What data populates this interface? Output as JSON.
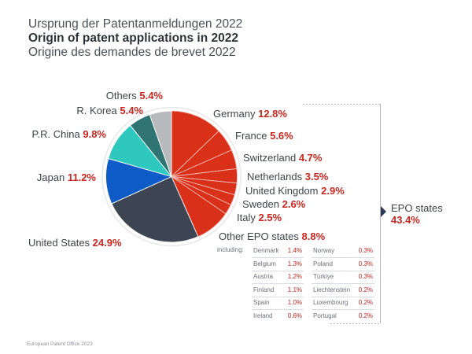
{
  "titles": {
    "de": "Ursprung der Patentanmeldungen 2022",
    "en": "Origin of patent applications in 2022",
    "fr": "Origine des demandes de brevet 2022"
  },
  "chart_data": {
    "type": "pie",
    "title": "Origin of patent applications in 2022",
    "start": "12 o'clock, clockwise",
    "slices": [
      {
        "name": "Germany",
        "value": 12.8,
        "label": "12.8%",
        "group": "EPO",
        "color": "#d9301a"
      },
      {
        "name": "France",
        "value": 5.6,
        "label": "5.6%",
        "group": "EPO",
        "color": "#d9301a"
      },
      {
        "name": "Switzerland",
        "value": 4.7,
        "label": "4.7%",
        "group": "EPO",
        "color": "#d9301a"
      },
      {
        "name": "Netherlands",
        "value": 3.5,
        "label": "3.5%",
        "group": "EPO",
        "color": "#d9301a"
      },
      {
        "name": "United Kingdom",
        "value": 2.9,
        "label": "2.9%",
        "group": "EPO",
        "color": "#d9301a"
      },
      {
        "name": "Sweden",
        "value": 2.6,
        "label": "2.6%",
        "group": "EPO",
        "color": "#d9301a"
      },
      {
        "name": "Italy",
        "value": 2.5,
        "label": "2.5%",
        "group": "EPO",
        "color": "#d9301a"
      },
      {
        "name": "Other EPO states",
        "value": 8.8,
        "label": "8.8%",
        "group": "EPO",
        "color": "#d9301a"
      },
      {
        "name": "United States",
        "value": 24.9,
        "label": "24.9%",
        "group": "non-EPO",
        "color": "#3e4552"
      },
      {
        "name": "Japan",
        "value": 11.2,
        "label": "11.2%",
        "group": "non-EPO",
        "color": "#0f5bc8"
      },
      {
        "name": "P.R. China",
        "value": 9.8,
        "label": "9.8%",
        "group": "non-EPO",
        "color": "#2ec8be"
      },
      {
        "name": "R. Korea",
        "value": 5.4,
        "label": "5.4%",
        "group": "non-EPO",
        "color": "#2f7373"
      },
      {
        "name": "Others",
        "value": 5.4,
        "label": "5.4%",
        "group": "non-EPO",
        "color": "#b7b9bc"
      }
    ],
    "group_total": {
      "name": "EPO states",
      "value": 43.4,
      "label": "43.4%"
    },
    "breakdown_label": "including:",
    "breakdown": {
      "left": [
        {
          "name": "Denmark",
          "value": "1.4%"
        },
        {
          "name": "Belgium",
          "value": "1.3%"
        },
        {
          "name": "Austria",
          "value": "1.2%"
        },
        {
          "name": "Finland",
          "value": "1.1%"
        },
        {
          "name": "Spain",
          "value": "1.0%"
        },
        {
          "name": "Ireland",
          "value": "0.6%"
        }
      ],
      "right": [
        {
          "name": "Norway",
          "value": "0.3%"
        },
        {
          "name": "Poland",
          "value": "0.3%"
        },
        {
          "name": "Türkiye",
          "value": "0.3%"
        },
        {
          "name": "Liechtenstein",
          "value": "0.2%"
        },
        {
          "name": "Luxembourg",
          "value": "0.2%"
        },
        {
          "name": "Portugal",
          "value": "0.2%"
        }
      ]
    }
  },
  "footer": "European Patent Office 2023"
}
